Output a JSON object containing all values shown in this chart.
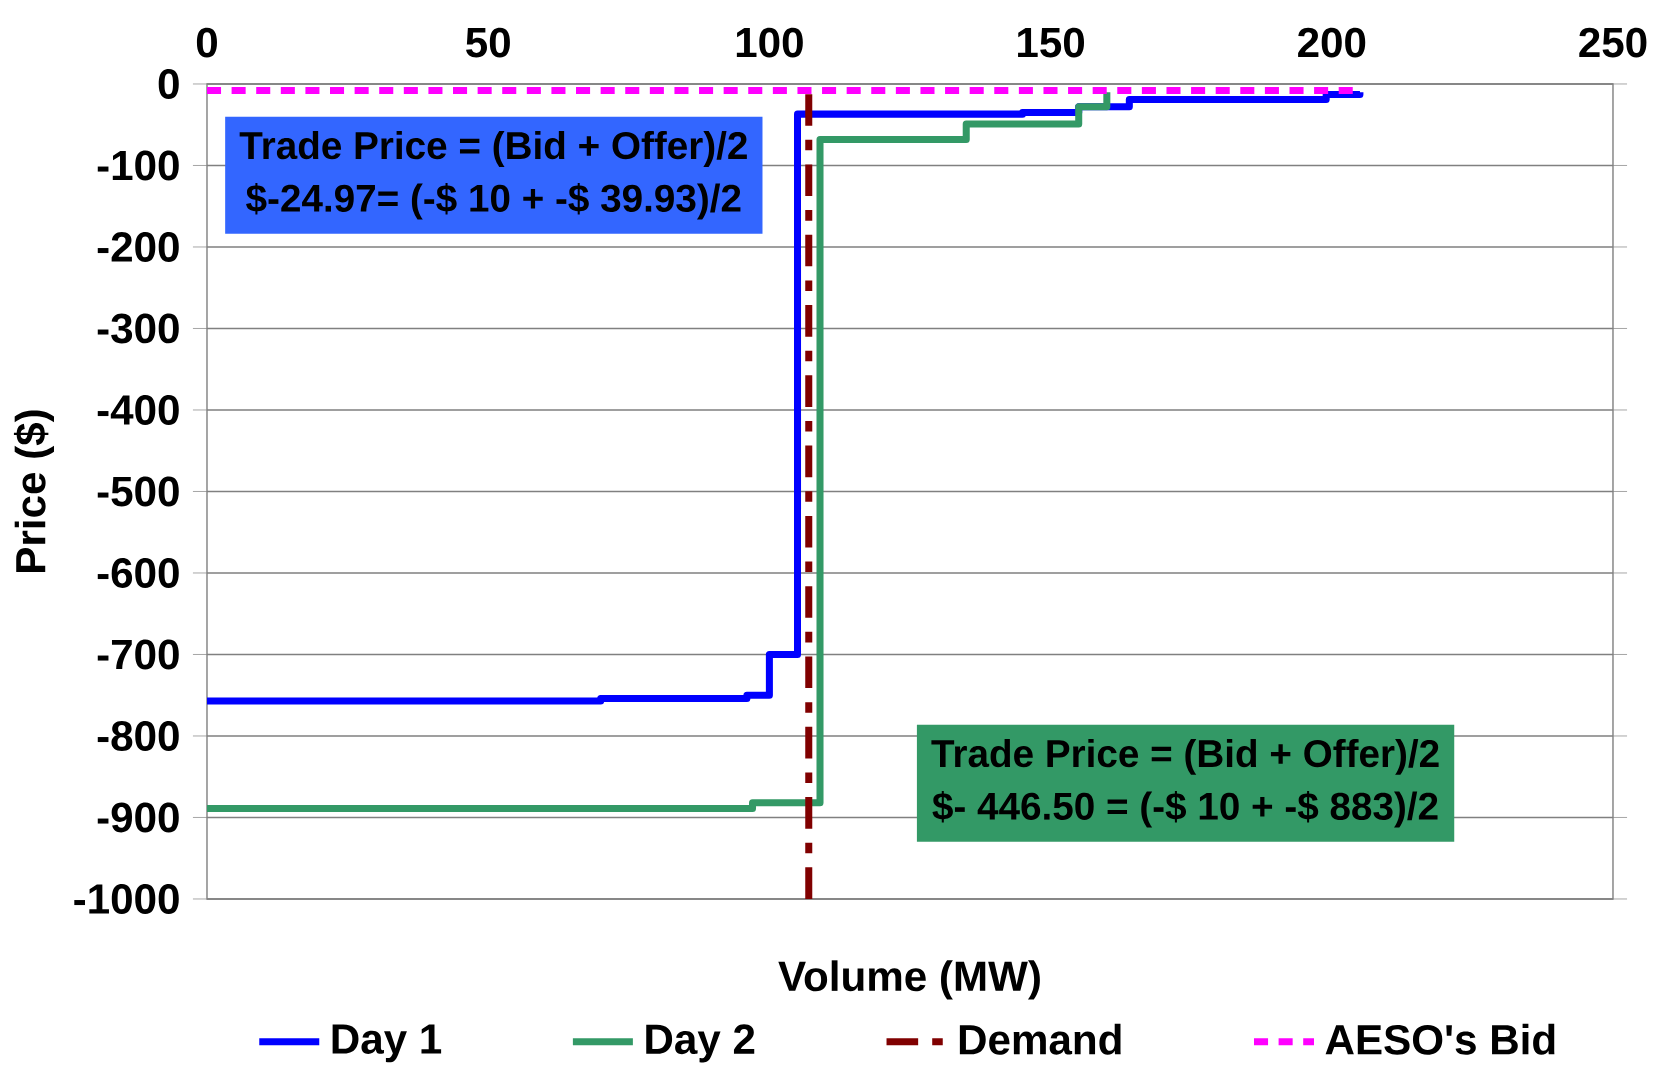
{
  "chart_data": {
    "type": "step",
    "xlabel": "Volume (MW)",
    "ylabel": "Price ($)",
    "xlim": [
      0,
      250
    ],
    "xticks": [
      0,
      50,
      100,
      150,
      200,
      250
    ],
    "ylim": [
      -1000,
      0
    ],
    "yticks": [
      -1000,
      -900,
      -800,
      -700,
      -600,
      -500,
      -400,
      -300,
      -200,
      -100,
      0
    ],
    "grid": "y",
    "legend": "bottom",
    "marker": "none",
    "series": [
      {
        "name": "Day 1",
        "color": "#0000ff",
        "x": [
          0,
          70,
          96,
          100,
          105,
          145,
          155,
          164,
          199,
          205
        ],
        "values": [
          -757,
          -754,
          -750,
          -700,
          -37,
          -35,
          -28,
          -19,
          -13,
          -10
        ]
      },
      {
        "name": "Day 2",
        "color": "#339966",
        "x": [
          0,
          97,
          109,
          135,
          155,
          160
        ],
        "values": [
          -889,
          -882,
          -68,
          -49,
          -28,
          -10
        ]
      },
      {
        "name": "Demand",
        "type": "line",
        "color": "#800000",
        "line_style": "dashdot",
        "x": [
          107,
          107
        ],
        "values": [
          -1000,
          0
        ]
      },
      {
        "name": "AESO's Bid",
        "type": "line",
        "color": "#ff00ff",
        "line_style": "dashed",
        "x": [
          0,
          205
        ],
        "values": [
          -8,
          -8
        ]
      }
    ],
    "annotations": [
      "Trade Price = (Bid + Offer)/2",
      "$-24.97= (-$ 10 + -$ 39.93)/2",
      "Trade Price = (Bid + Offer)/2",
      "$- 446.50 = (-$ 10 + -$ 883)/2"
    ]
  }
}
